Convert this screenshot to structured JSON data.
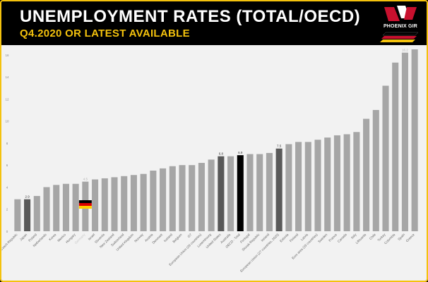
{
  "header": {
    "title": "UNEMPLOYMENT RATES (TOTAL/OECD)",
    "subtitle": "Q4.2020 OR LATEST AVAILABLE",
    "logo_text": "PHOENIX GIR"
  },
  "colors": {
    "accent": "#f4c20d",
    "bar_default": "#a6a6a6",
    "bar_highlight": "#595959",
    "bar_oecd": "#000000",
    "plot_bg": "#f2f2f2"
  },
  "chart_data": {
    "type": "bar",
    "title": "UNEMPLOYMENT RATES (TOTAL/OECD)",
    "subtitle": "Q4.2020 OR LATEST AVAILABLE",
    "xlabel": "",
    "ylabel": "",
    "ylim": [
      0,
      16.5
    ],
    "yticks": [
      0,
      2,
      4,
      6,
      8,
      10,
      12,
      14,
      16
    ],
    "grid": false,
    "legend": "none",
    "categories": [
      "Czech Republic",
      "Japan",
      "Poland",
      "Netherlands",
      "Korea",
      "Mexico",
      "Hungary",
      "Germany",
      "Israel",
      "Slovenia",
      "New Zealand",
      "Switzerland",
      "United Kingdom",
      "Norway",
      "Austria",
      "Denmark",
      "Iceland",
      "Belgium",
      "G7",
      "European Union (28 countries)",
      "Luxembourg",
      "United States",
      "Australia",
      "OECD - Total",
      "Portugal",
      "Slovak Republic",
      "Ireland",
      "European Union (27 countries, 2020)",
      "Estonia",
      "Finland",
      "Latvia",
      "Euro area (19 countries)",
      "Sweden",
      "France",
      "Canada",
      "Italy",
      "Lithuania",
      "Chile",
      "Turkey",
      "Colombia",
      "Spain",
      "Greece"
    ],
    "values": [
      2.9,
      2.9,
      3.2,
      4.0,
      4.2,
      4.3,
      4.3,
      4.5,
      4.7,
      4.8,
      4.9,
      5.0,
      5.1,
      5.2,
      5.5,
      5.7,
      5.9,
      6.0,
      6.0,
      6.2,
      6.5,
      6.8,
      6.8,
      6.9,
      7.0,
      7.0,
      7.1,
      7.5,
      7.9,
      8.1,
      8.1,
      8.3,
      8.5,
      8.7,
      8.8,
      9.0,
      10.2,
      11.0,
      13.2,
      15.3,
      16.2,
      16.5
    ],
    "highlight": [
      "Japan",
      "United States",
      "European Union (27 countries, 2020)"
    ],
    "oecd": "OECD - Total",
    "germany": "Germany",
    "data_labels": [
      {
        "category": "Japan",
        "text": "2.9"
      },
      {
        "category": "Germany",
        "text": "4.5"
      },
      {
        "category": "United States",
        "text": "6.8"
      },
      {
        "category": "OECD - Total",
        "text": "6.9"
      },
      {
        "category": "European Union (27 countries, 2020)",
        "text": "7.5"
      },
      {
        "category": "Spain",
        "text": "16.2"
      }
    ]
  }
}
